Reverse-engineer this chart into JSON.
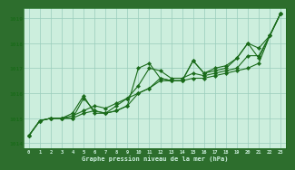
{
  "title": "Graphe pression niveau de la mer (hPa)",
  "bg_plot": "#cceedd",
  "bg_bottom": "#2d6e2d",
  "line_color": "#1a6b1a",
  "text_color_bottom": "#cceedd",
  "grid_color": "#99ccbb",
  "xlim": [
    -0.5,
    23.5
  ],
  "ylim": [
    1013.8,
    1019.4
  ],
  "yticks": [
    1014,
    1015,
    1016,
    1017,
    1018,
    1019
  ],
  "xticks": [
    0,
    1,
    2,
    3,
    4,
    5,
    6,
    7,
    8,
    9,
    10,
    11,
    12,
    13,
    14,
    15,
    16,
    17,
    18,
    19,
    20,
    21,
    22,
    23
  ],
  "series": [
    [
      1014.3,
      1014.9,
      1015.0,
      1015.0,
      1015.0,
      1015.8,
      1015.3,
      1015.2,
      1015.3,
      1015.5,
      1017.0,
      1017.2,
      1016.6,
      1016.5,
      1016.5,
      1017.3,
      1016.8,
      1016.9,
      1017.0,
      1017.4,
      1018.0,
      1017.4,
      1018.3,
      1019.2
    ],
    [
      1014.3,
      1014.9,
      1015.0,
      1015.0,
      1015.0,
      1015.2,
      1015.3,
      1015.2,
      1015.3,
      1015.5,
      1016.0,
      1016.2,
      1016.6,
      1016.5,
      1016.5,
      1017.3,
      1016.8,
      1017.0,
      1017.1,
      1017.4,
      1018.0,
      1017.8,
      1018.3,
      1019.2
    ],
    [
      1014.3,
      1014.9,
      1015.0,
      1015.0,
      1015.1,
      1015.3,
      1015.5,
      1015.4,
      1015.6,
      1015.8,
      1016.3,
      1017.0,
      1016.9,
      1016.6,
      1016.6,
      1016.8,
      1016.7,
      1016.8,
      1016.9,
      1017.0,
      1017.5,
      1017.5,
      1018.3,
      1019.2
    ],
    [
      1014.3,
      1014.9,
      1015.0,
      1015.0,
      1015.2,
      1015.9,
      1015.2,
      1015.2,
      1015.5,
      1015.8,
      1016.0,
      1016.2,
      1016.5,
      1016.5,
      1016.5,
      1016.6,
      1016.6,
      1016.7,
      1016.8,
      1016.9,
      1017.0,
      1017.2,
      1018.3,
      1019.2
    ]
  ]
}
